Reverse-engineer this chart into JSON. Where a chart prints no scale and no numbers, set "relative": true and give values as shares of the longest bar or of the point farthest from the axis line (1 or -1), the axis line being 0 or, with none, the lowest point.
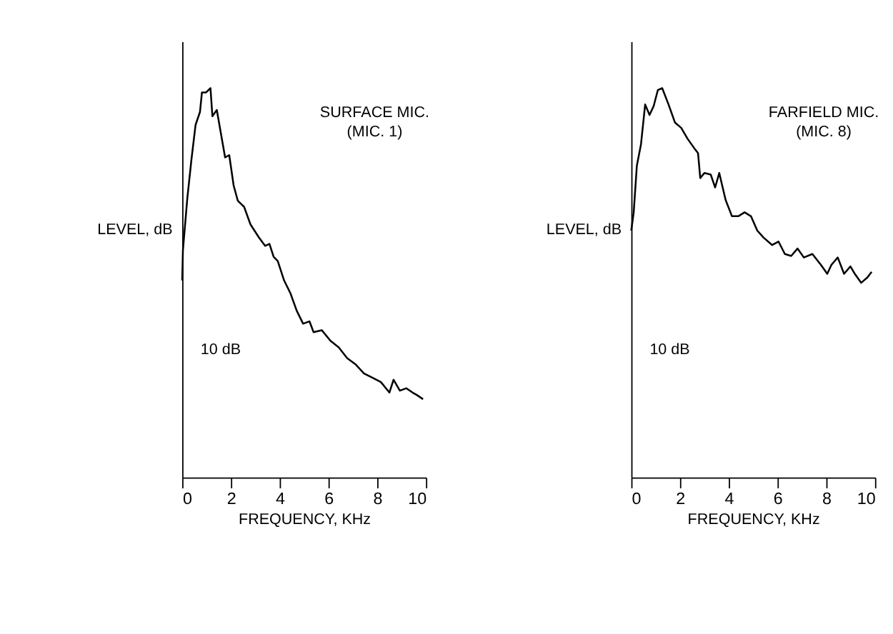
{
  "chart_data": [
    {
      "type": "line",
      "relative": true,
      "xlabel": "FREQUENCY, KHz",
      "ylabel": "LEVEL, dB",
      "xlim": [
        0,
        10
      ],
      "xticks": [
        0,
        2,
        4,
        6,
        8,
        10
      ],
      "grid": false,
      "marker": "none",
      "line_style": "solid",
      "annotations": [
        "SURFACE MIC.",
        "(MIC. 1)",
        "10 dB"
      ],
      "series": [
        {
          "color": "#000000",
          "x": [
            0,
            0.03,
            0.21,
            0.38,
            0.55,
            0.73,
            0.81,
            0.98,
            1.16,
            1.24,
            1.42,
            1.59,
            1.76,
            1.93,
            2.11,
            2.28,
            2.54,
            2.8,
            3.14,
            3.4,
            3.58,
            3.75,
            3.92,
            4.18,
            4.44,
            4.7,
            4.96,
            5.22,
            5.39,
            5.73,
            6.08,
            6.42,
            6.77,
            7.12,
            7.46,
            7.81,
            8.15,
            8.5,
            8.67,
            8.93,
            9.19,
            9.45,
            9.62,
            9.88
          ],
          "values": [
            0.506,
            0.584,
            0.717,
            0.817,
            0.906,
            0.939,
            0.989,
            0.989,
            1.0,
            0.928,
            0.944,
            0.883,
            0.822,
            0.828,
            0.75,
            0.711,
            0.695,
            0.65,
            0.617,
            0.595,
            0.6,
            0.567,
            0.556,
            0.506,
            0.473,
            0.428,
            0.395,
            0.401,
            0.373,
            0.378,
            0.351,
            0.334,
            0.306,
            0.29,
            0.267,
            0.256,
            0.245,
            0.218,
            0.251,
            0.223,
            0.229,
            0.218,
            0.212,
            0.201
          ]
        }
      ]
    },
    {
      "type": "line",
      "relative": true,
      "xlabel": "FREQUENCY, KHz",
      "ylabel": "LEVEL, dB",
      "xlim": [
        0,
        10
      ],
      "xticks": [
        0,
        2,
        4,
        6,
        8,
        10
      ],
      "grid": false,
      "marker": "none",
      "line_style": "solid",
      "annotations": [
        "FARFIELD MIC.",
        "(MIC. 8)",
        "10 dB"
      ],
      "series": [
        {
          "color": "#000000",
          "x": [
            0,
            0.1,
            0.23,
            0.4,
            0.57,
            0.75,
            0.92,
            1.09,
            1.27,
            1.53,
            1.79,
            2.05,
            2.31,
            2.57,
            2.74,
            2.83,
            3.0,
            3.26,
            3.44,
            3.61,
            3.87,
            4.13,
            4.39,
            4.65,
            4.91,
            5.17,
            5.43,
            5.78,
            6.04,
            6.3,
            6.56,
            6.82,
            7.08,
            7.43,
            7.78,
            8.04,
            8.21,
            8.47,
            8.73,
            8.99,
            9.17,
            9.43,
            9.69,
            9.86
          ],
          "values": [
            0.634,
            0.681,
            0.801,
            0.856,
            0.958,
            0.931,
            0.954,
            0.995,
            1.0,
            0.958,
            0.912,
            0.898,
            0.87,
            0.847,
            0.833,
            0.769,
            0.782,
            0.778,
            0.745,
            0.782,
            0.713,
            0.671,
            0.671,
            0.681,
            0.671,
            0.634,
            0.616,
            0.597,
            0.606,
            0.574,
            0.569,
            0.588,
            0.565,
            0.574,
            0.546,
            0.523,
            0.546,
            0.565,
            0.523,
            0.542,
            0.523,
            0.5,
            0.514,
            0.528
          ]
        }
      ]
    }
  ]
}
